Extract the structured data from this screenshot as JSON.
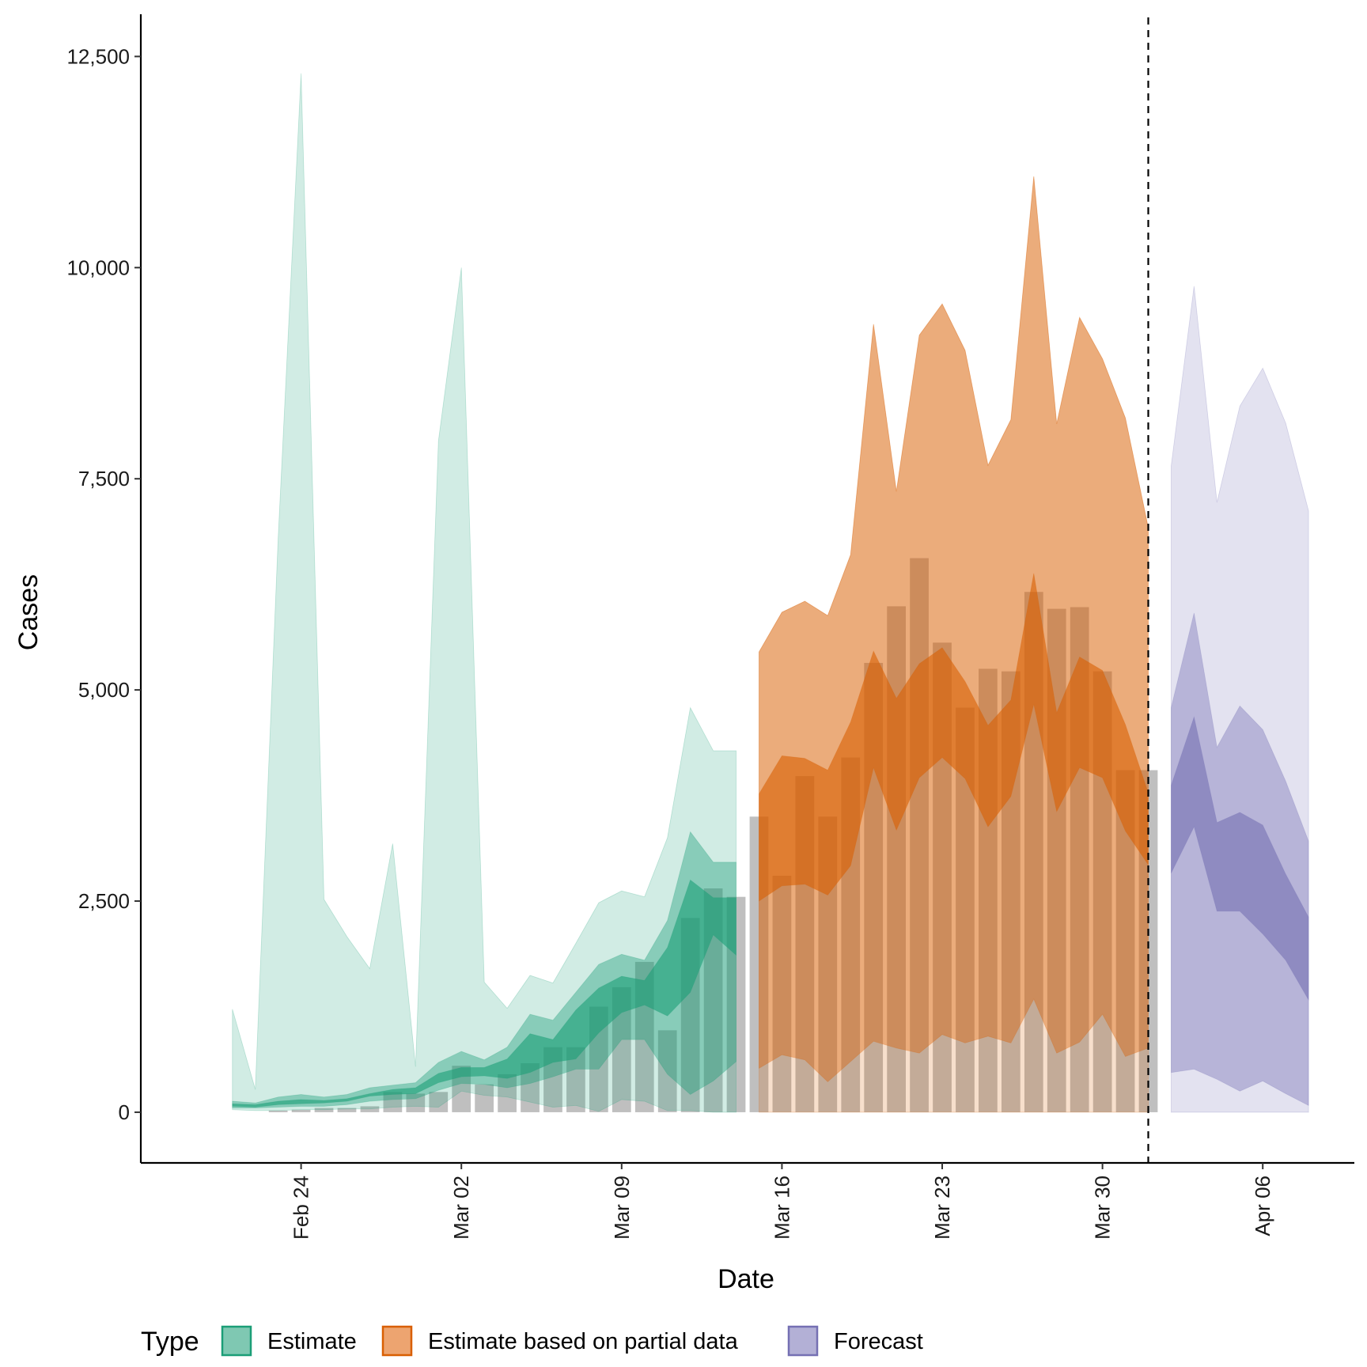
{
  "chart_data": {
    "type": "area",
    "xlabel": "Date",
    "ylabel": "Cases",
    "ylim": [
      -600,
      13000
    ],
    "xlim": [
      "2020-02-17",
      "2020-04-10"
    ],
    "y_ticks": [
      0,
      2500,
      5000,
      7500,
      10000,
      12500
    ],
    "y_tick_labels": [
      "0",
      "2,500",
      "5,000",
      "7,500",
      "10,000",
      "12,500"
    ],
    "x_ticks": [
      "2020-02-24",
      "2020-03-02",
      "2020-03-09",
      "2020-03-16",
      "2020-03-23",
      "2020-03-30",
      "2020-04-06"
    ],
    "x_tick_labels": [
      "Feb 24",
      "Mar 02",
      "Mar 09",
      "Mar 16",
      "Mar 23",
      "Mar 30",
      "Apr 06"
    ],
    "vline_date": "2020-04-01",
    "grid": false,
    "legend": {
      "title": "Type",
      "position": "bottom",
      "entries": [
        {
          "label": "Estimate",
          "fill": "#7fc8b2",
          "stroke": "#1b9e77"
        },
        {
          "label": "Estimate based on partial data",
          "fill": "#eda470",
          "stroke": "#d95f02"
        },
        {
          "label": "Forecast",
          "fill": "#b3b0d6",
          "stroke": "#7570b3"
        }
      ]
    },
    "observed_cases": {
      "color": "#808080",
      "points": [
        {
          "date": "2020-02-23",
          "value": 20
        },
        {
          "date": "2020-02-24",
          "value": 30
        },
        {
          "date": "2020-02-25",
          "value": 50
        },
        {
          "date": "2020-02-26",
          "value": 50
        },
        {
          "date": "2020-02-27",
          "value": 70
        },
        {
          "date": "2020-02-28",
          "value": 240
        },
        {
          "date": "2020-02-29",
          "value": 220
        },
        {
          "date": "2020-03-01",
          "value": 240
        },
        {
          "date": "2020-03-02",
          "value": 550
        },
        {
          "date": "2020-03-03",
          "value": 330
        },
        {
          "date": "2020-03-04",
          "value": 450
        },
        {
          "date": "2020-03-05",
          "value": 580
        },
        {
          "date": "2020-03-06",
          "value": 770
        },
        {
          "date": "2020-03-07",
          "value": 770
        },
        {
          "date": "2020-03-08",
          "value": 1250
        },
        {
          "date": "2020-03-09",
          "value": 1480
        },
        {
          "date": "2020-03-10",
          "value": 1780
        },
        {
          "date": "2020-03-11",
          "value": 970
        },
        {
          "date": "2020-03-12",
          "value": 2300
        },
        {
          "date": "2020-03-13",
          "value": 2650
        },
        {
          "date": "2020-03-14",
          "value": 2550
        },
        {
          "date": "2020-03-15",
          "value": 3500
        },
        {
          "date": "2020-03-16",
          "value": 2800
        },
        {
          "date": "2020-03-17",
          "value": 3980
        },
        {
          "date": "2020-03-18",
          "value": 3500
        },
        {
          "date": "2020-03-19",
          "value": 4200
        },
        {
          "date": "2020-03-20",
          "value": 5320
        },
        {
          "date": "2020-03-21",
          "value": 5990
        },
        {
          "date": "2020-03-22",
          "value": 6560
        },
        {
          "date": "2020-03-23",
          "value": 5560
        },
        {
          "date": "2020-03-24",
          "value": 4790
        },
        {
          "date": "2020-03-25",
          "value": 5250
        },
        {
          "date": "2020-03-26",
          "value": 5220
        },
        {
          "date": "2020-03-27",
          "value": 6160
        },
        {
          "date": "2020-03-28",
          "value": 5960
        },
        {
          "date": "2020-03-29",
          "value": 5980
        },
        {
          "date": "2020-03-30",
          "value": 5220
        },
        {
          "date": "2020-03-31",
          "value": 4050
        },
        {
          "date": "2020-04-01",
          "value": 4050
        }
      ]
    },
    "series": [
      {
        "type_key": "estimate",
        "dates": [
          "2020-02-21",
          "2020-02-22",
          "2020-02-23",
          "2020-02-24",
          "2020-02-25",
          "2020-02-26",
          "2020-02-27",
          "2020-02-28",
          "2020-02-29",
          "2020-03-01",
          "2020-03-02",
          "2020-03-03",
          "2020-03-04",
          "2020-03-05",
          "2020-03-06",
          "2020-03-07",
          "2020-03-08",
          "2020-03-09",
          "2020-03-10",
          "2020-03-11",
          "2020-03-12",
          "2020-03-13",
          "2020-03-14"
        ],
        "bands": [
          {
            "opacity": 0.2,
            "lower": [
              30,
              20,
              20,
              30,
              30,
              40,
              40,
              60,
              70,
              60,
              250,
              200,
              180,
              120,
              60,
              80,
              10,
              150,
              130,
              20,
              20,
              0,
              0
            ],
            "upper": [
              1220,
              270,
              6800,
              12300,
              2520,
              2080,
              1700,
              3180,
              540,
              7950,
              10000,
              1540,
              1230,
              1620,
              1530,
              2000,
              2480,
              2620,
              2550,
              3250,
              4790,
              4280,
              4280
            ]
          },
          {
            "opacity": 0.4,
            "lower": [
              50,
              50,
              60,
              70,
              70,
              90,
              130,
              150,
              160,
              260,
              340,
              330,
              290,
              340,
              420,
              510,
              510,
              860,
              860,
              450,
              210,
              370,
              600
            ],
            "upper": [
              130,
              110,
              180,
              210,
              180,
              210,
              290,
              320,
              350,
              590,
              720,
              620,
              770,
              1160,
              1090,
              1420,
              1750,
              1870,
              1800,
              2270,
              3320,
              2960,
              2960
            ]
          },
          {
            "opacity": 0.6,
            "lower": [
              70,
              60,
              90,
              100,
              110,
              130,
              190,
              210,
              220,
              350,
              420,
              430,
              400,
              470,
              590,
              630,
              940,
              1180,
              1270,
              1140,
              1420,
              2100,
              1860
            ],
            "upper": [
              100,
              90,
              130,
              150,
              140,
              160,
              220,
              270,
              290,
              460,
              530,
              530,
              630,
              930,
              860,
              1210,
              1470,
              1610,
              1560,
              1950,
              2750,
              2540,
              2540
            ]
          }
        ]
      },
      {
        "type_key": "partial",
        "dates": [
          "2020-03-15",
          "2020-03-16",
          "2020-03-17",
          "2020-03-18",
          "2020-03-19",
          "2020-03-20",
          "2020-03-21",
          "2020-03-22",
          "2020-03-23",
          "2020-03-24",
          "2020-03-25",
          "2020-03-26",
          "2020-03-27",
          "2020-03-28",
          "2020-03-29",
          "2020-03-30",
          "2020-03-31",
          "2020-04-01"
        ],
        "bands": [
          {
            "opacity": 0.2,
            "lower": [
              0,
              0,
              0,
              0,
              0,
              0,
              0,
              0,
              0,
              0,
              0,
              0,
              0,
              0,
              0,
              0,
              0,
              0
            ],
            "upper": [
              5450,
              5920,
              6050,
              5880,
              6600,
              9330,
              7350,
              9200,
              9570,
              9020,
              7660,
              8200,
              11080,
              8150,
              9410,
              8920,
              8220,
              6920
            ]
          },
          {
            "opacity": 0.4,
            "lower": [
              520,
              680,
              620,
              360,
              600,
              840,
              760,
              700,
              920,
              820,
              900,
              820,
              1340,
              700,
              830,
              1160,
              660,
              760
            ]
          },
          {
            "opacity": 0.6,
            "lower": [
              2500,
              2680,
              2700,
              2570,
              2920,
              4080,
              3340,
              3960,
              4200,
              3950,
              3380,
              3740,
              4830,
              3560,
              4080,
              3960,
              3330,
              2930
            ],
            "upper": [
              3770,
              4220,
              4190,
              4050,
              4620,
              5460,
              4900,
              5310,
              5500,
              5100,
              4580,
              4880,
              6380,
              4730,
              5390,
              5230,
              4590,
              3780
            ]
          }
        ]
      },
      {
        "type_key": "forecast",
        "dates": [
          "2020-04-02",
          "2020-04-03",
          "2020-04-04",
          "2020-04-05",
          "2020-04-06",
          "2020-04-07",
          "2020-04-08"
        ],
        "bands": [
          {
            "opacity": 0.2,
            "lower": [
              0,
              0,
              0,
              0,
              0,
              0,
              0
            ],
            "upper": [
              7650,
              9780,
              7220,
              8360,
              8810,
              8160,
              7120
            ]
          },
          {
            "opacity": 0.4,
            "lower": [
              470,
              510,
              390,
              250,
              370,
              220,
              80
            ],
            "upper": [
              4790,
              5910,
              4320,
              4810,
              4530,
              3920,
              3210
            ]
          },
          {
            "opacity": 0.6,
            "lower": [
              2830,
              3380,
              2380,
              2380,
              2110,
              1800,
              1330
            ],
            "upper": [
              3870,
              4680,
              3430,
              3550,
              3400,
              2820,
              2310
            ]
          }
        ]
      }
    ]
  }
}
